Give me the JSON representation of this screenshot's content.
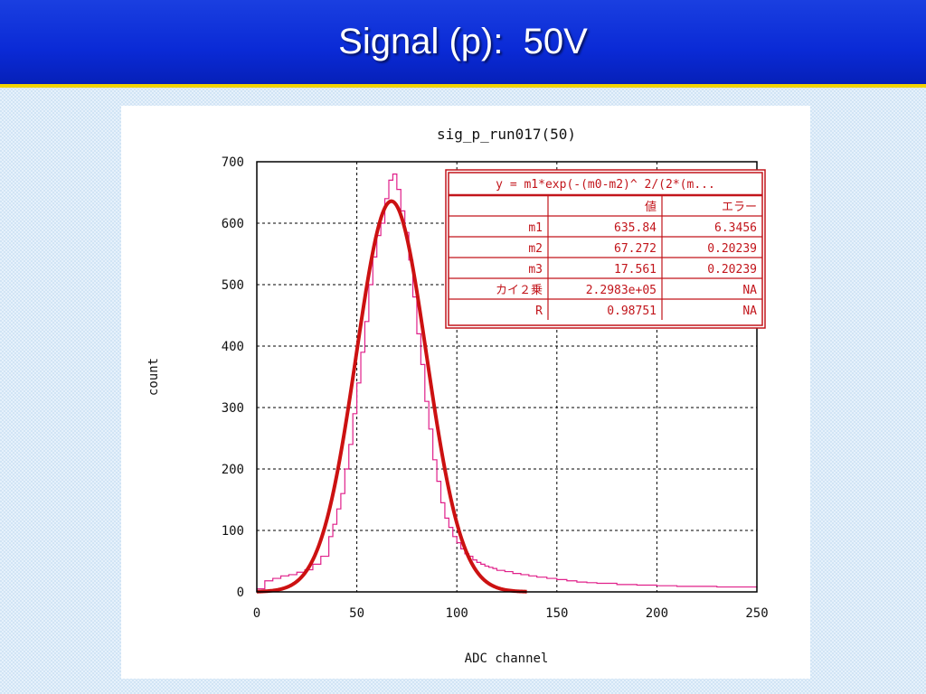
{
  "slide": {
    "title": "Signal (p):  50V"
  },
  "chart_data": {
    "type": "line",
    "title": "sig_p_run017(50)",
    "xlabel": "ADC channel",
    "ylabel": "count",
    "xlim": [
      0,
      250
    ],
    "ylim": [
      0,
      700
    ],
    "x_ticks": [
      0,
      50,
      100,
      150,
      200,
      250
    ],
    "y_ticks": [
      0,
      100,
      200,
      300,
      400,
      500,
      600,
      700
    ],
    "grid": true,
    "colors": {
      "histogram": "#e0208a",
      "fit": "#cc1111",
      "table": "#c2151b"
    },
    "series": [
      {
        "kind": "histogram",
        "x": [
          0,
          4,
          8,
          12,
          16,
          20,
          24,
          28,
          32,
          36,
          38,
          40,
          42,
          44,
          46,
          48,
          50,
          52,
          54,
          56,
          58,
          60,
          62,
          64,
          66,
          68,
          70,
          72,
          74,
          76,
          78,
          80,
          82,
          84,
          86,
          88,
          90,
          92,
          94,
          96,
          98,
          100,
          102,
          104,
          106,
          108,
          110,
          112,
          114,
          116,
          118,
          120,
          124,
          128,
          132,
          136,
          140,
          145,
          150,
          155,
          160,
          165,
          170,
          180,
          190,
          200,
          210,
          220,
          230,
          240,
          250
        ],
        "values": [
          5,
          18,
          22,
          26,
          28,
          32,
          36,
          45,
          58,
          90,
          110,
          135,
          160,
          200,
          240,
          290,
          340,
          390,
          440,
          500,
          545,
          580,
          600,
          640,
          670,
          680,
          655,
          620,
          585,
          540,
          480,
          420,
          370,
          310,
          265,
          215,
          180,
          145,
          120,
          105,
          90,
          80,
          70,
          62,
          58,
          52,
          48,
          45,
          42,
          40,
          38,
          35,
          33,
          30,
          28,
          26,
          24,
          22,
          20,
          18,
          16,
          15,
          14,
          12,
          11,
          10,
          9,
          9,
          8,
          8,
          7
        ]
      },
      {
        "kind": "gaussian-fit",
        "m1": 635.84,
        "m2": 67.272,
        "m3": 17.561,
        "x_range": [
          0,
          135
        ]
      }
    ],
    "fit_table": {
      "formula": "y = m1*exp(-(m0-m2)^ 2/(2*(m...",
      "header": [
        "",
        "値",
        "エラー"
      ],
      "rows": [
        [
          "m1",
          "635.84",
          "6.3456"
        ],
        [
          "m2",
          "67.272",
          "0.20239"
        ],
        [
          "m3",
          "17.561",
          "0.20239"
        ],
        [
          "カイ２乗",
          "2.2983e+05",
          "NA"
        ],
        [
          "R",
          "0.98751",
          "NA"
        ]
      ]
    }
  }
}
